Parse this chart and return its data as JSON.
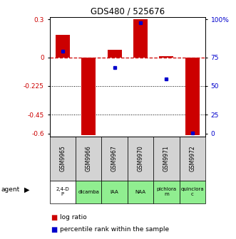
{
  "title": "GDS480 / 525676",
  "samples": [
    "GSM9965",
    "GSM9966",
    "GSM9967",
    "GSM9970",
    "GSM9971",
    "GSM9972"
  ],
  "agents": [
    "2,4-D\nP",
    "dicamba",
    "IAA",
    "NAA",
    "pichlora\nm",
    "quinclora\nc"
  ],
  "agent_colors": [
    "#ffffff",
    "#90ee90",
    "#90ee90",
    "#90ee90",
    "#90ee90",
    "#90ee90"
  ],
  "log_ratios": [
    0.18,
    -0.61,
    0.06,
    0.3,
    0.01,
    -0.61
  ],
  "percentile_y": [
    0.05,
    null,
    -0.08,
    0.27,
    -0.17,
    -0.595
  ],
  "bar_color": "#cc0000",
  "dot_color": "#0000cc",
  "ylim": [
    -0.62,
    0.32
  ],
  "y_ticks_left": [
    0.3,
    0.0,
    -0.225,
    -0.45,
    -0.6
  ],
  "y_ticks_left_labels": [
    "0.3",
    "0",
    "-0.225",
    "-0.45",
    "-0.6"
  ],
  "y_ticks_right_vals": [
    0.3,
    0.0,
    -0.225,
    -0.45,
    -0.6
  ],
  "y_ticks_right_labels": [
    "100%",
    "75",
    "50",
    "25",
    "0"
  ],
  "hline_y": 0.0,
  "dotted_lines": [
    -0.225,
    -0.45
  ],
  "legend_log_ratio": "log ratio",
  "legend_percentile": "percentile rank within the sample",
  "bar_width": 0.55,
  "gsm_bg": "#d3d3d3"
}
